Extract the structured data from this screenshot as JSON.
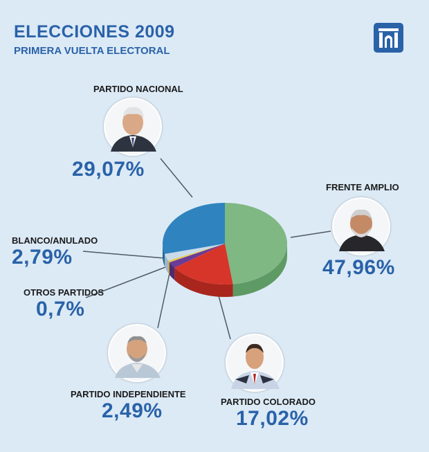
{
  "header": {
    "title": "ELECCIONES 2009",
    "subtitle": "PRIMERA VUELTA ELECTORAL",
    "logo_icon": "institution-logo-icon"
  },
  "colors": {
    "background": "#dceaf6",
    "accent": "#2a62a8",
    "label": "#1a1a1a",
    "leader_line": "#4d5a66"
  },
  "chart_data": {
    "type": "pie",
    "title": "ELECCIONES 2009 - PRIMERA VUELTA ELECTORAL",
    "unit": "%",
    "slices": [
      {
        "label": "FRENTE AMPLIO",
        "value": 47.96,
        "display": "47,96%",
        "color": "#7fb883",
        "side": "#5e9a63"
      },
      {
        "label": "PARTIDO COLORADO",
        "value": 17.02,
        "display": "17,02%",
        "color": "#d7352a",
        "side": "#a8261d"
      },
      {
        "label": "PARTIDO INDEPENDIENTE",
        "value": 2.49,
        "display": "2,49%",
        "color": "#6b3c96",
        "side": "#4e2a6f"
      },
      {
        "label": "OTROS PARTIDOS",
        "value": 0.7,
        "display": "0,7%",
        "color": "#e8c94a",
        "side": "#bfa233"
      },
      {
        "label": "BLANCO/ANULADO",
        "value": 2.79,
        "display": "2,79%",
        "color": "#c9dbea",
        "side": "#9fb5c8"
      },
      {
        "label": "PARTIDO NACIONAL",
        "value": 29.07,
        "display": "29,07%",
        "color": "#2f84bf",
        "side": "#206592"
      }
    ]
  }
}
